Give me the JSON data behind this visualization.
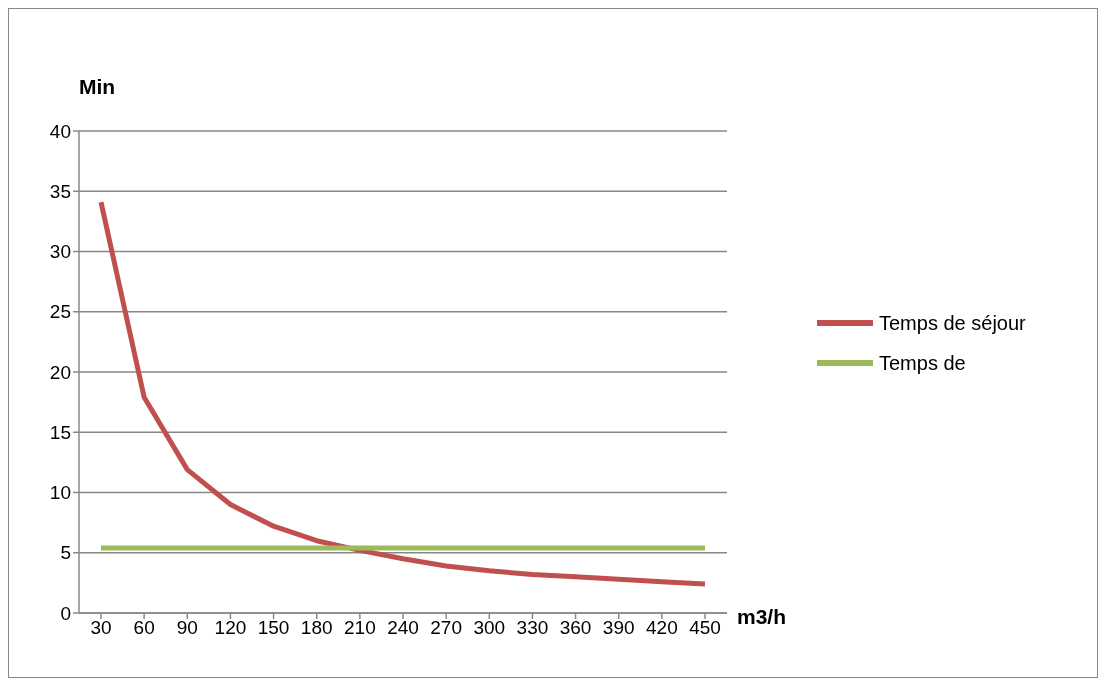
{
  "chart_data": {
    "type": "line",
    "xlabel": "m3/h",
    "ylabel": "Min",
    "categories": [
      "30",
      "60",
      "90",
      "120",
      "150",
      "180",
      "210",
      "240",
      "270",
      "300",
      "330",
      "360",
      "390",
      "420",
      "450"
    ],
    "series": [
      {
        "name": "Temps de séjour",
        "color": "#c0504d",
        "values": [
          34.1,
          17.9,
          11.9,
          9.0,
          7.2,
          6.0,
          5.2,
          4.5,
          3.9,
          3.5,
          3.2,
          3.0,
          2.8,
          2.6,
          2.4
        ]
      },
      {
        "name": "Temps de",
        "color": "#9bbb59",
        "values": [
          5.4,
          5.4,
          5.4,
          5.4,
          5.4,
          5.4,
          5.4,
          5.4,
          5.4,
          5.4,
          5.4,
          5.4,
          5.4,
          5.4,
          5.4
        ]
      }
    ],
    "ylim": [
      0,
      40
    ],
    "yticks": [
      0,
      5,
      10,
      15,
      20,
      25,
      30,
      35,
      40
    ],
    "grid": "y",
    "legend": "right",
    "marker": "none",
    "line_style": "solid"
  }
}
